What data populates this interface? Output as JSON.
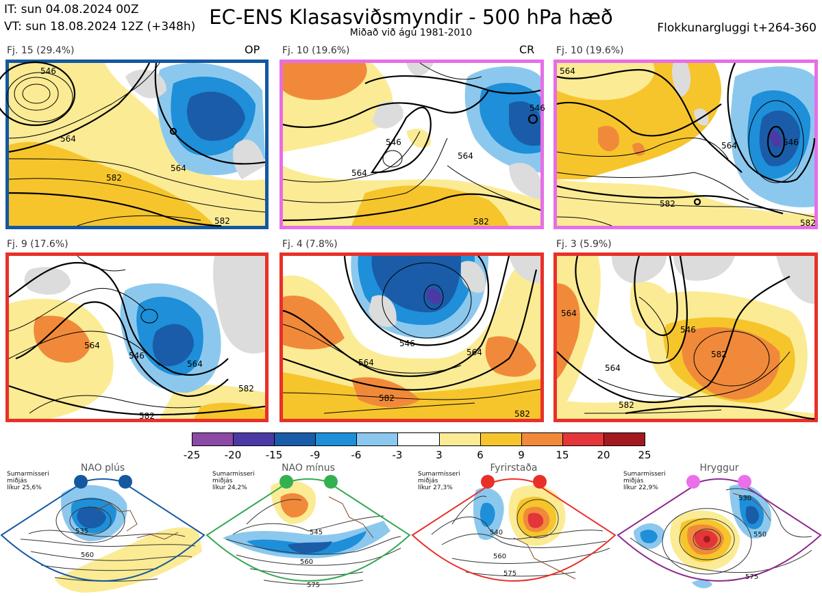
{
  "header": {
    "init_time": "IT: sun 04.08.2024 00Z",
    "valid_time": "VT: sun 18.08.2024 12Z  (+348h)",
    "title": "EC-ENS Klasasviðsmyndir - 500 hPa hæð",
    "subtitle": "Miðað við ágú 1981-2010",
    "window": "Flokkunargluggi t+264-360"
  },
  "panels": [
    {
      "label": "Fj. 15 (29.4%)",
      "tag": "OP",
      "border": "#1458a0",
      "contours": [
        "546",
        "564",
        "564",
        "582",
        "582"
      ]
    },
    {
      "label": "Fj. 10 (19.6%)",
      "tag": "CR",
      "border": "#e66ee6",
      "contours": [
        "546",
        "546",
        "564",
        "582",
        "564"
      ]
    },
    {
      "label": "Fj. 10 (19.6%)",
      "tag": "",
      "border": "#e66ee6",
      "contours": [
        "564",
        "564",
        "546",
        "582",
        "582"
      ]
    },
    {
      "label": "Fj. 9 (17.6%)",
      "tag": "",
      "border": "#e8302a",
      "contours": [
        "564",
        "546",
        "564",
        "582",
        "582"
      ]
    },
    {
      "label": "Fj. 4 (7.8%)",
      "tag": "",
      "border": "#e8302a",
      "contours": [
        "546",
        "564",
        "564",
        "582",
        "582"
      ]
    },
    {
      "label": "Fj. 3 (5.9%)",
      "tag": "",
      "border": "#e8302a",
      "contours": [
        "564",
        "546",
        "564",
        "582",
        "582"
      ]
    }
  ],
  "colorbar": {
    "colors": [
      "#8b4aa5",
      "#4b3aa5",
      "#1a5ca8",
      "#1e8fd8",
      "#8cc8ee",
      "#ffffff",
      "#fbeb94",
      "#f6c52c",
      "#f08a3a",
      "#e3353a",
      "#a31a1e"
    ],
    "ticks": [
      "-25",
      "-20",
      "-15",
      "-9",
      "-6",
      "-3",
      "3",
      "6",
      "9",
      "15",
      "20",
      "25"
    ]
  },
  "regimes": [
    {
      "name": "NAO plús",
      "info": [
        "Sumarmisseri",
        "miðjás",
        "líkur 25,6%"
      ],
      "color": "#1458a0",
      "dot": "#1458a0",
      "contours": [
        "535",
        "560"
      ]
    },
    {
      "name": "NAO mínus",
      "info": [
        "Sumarmisseri",
        "miðjás",
        "líkur 24,2%"
      ],
      "color": "#34a853",
      "dot": "#34b050",
      "contours": [
        "545",
        "560",
        "575"
      ]
    },
    {
      "name": "Fyrirstaða",
      "info": [
        "Sumarmisseri",
        "miðjás",
        "líkur 27,3%"
      ],
      "color": "#e8302a",
      "dot": "#e8302a",
      "contours": [
        "540",
        "560",
        "575"
      ]
    },
    {
      "name": "Hryggur",
      "info": [
        "Sumarmisseri",
        "miðjás",
        "líkur 22,9%"
      ],
      "color": "#8e2a8e",
      "dot": "#ea70ea",
      "contours": [
        "530",
        "550",
        "575"
      ]
    }
  ]
}
